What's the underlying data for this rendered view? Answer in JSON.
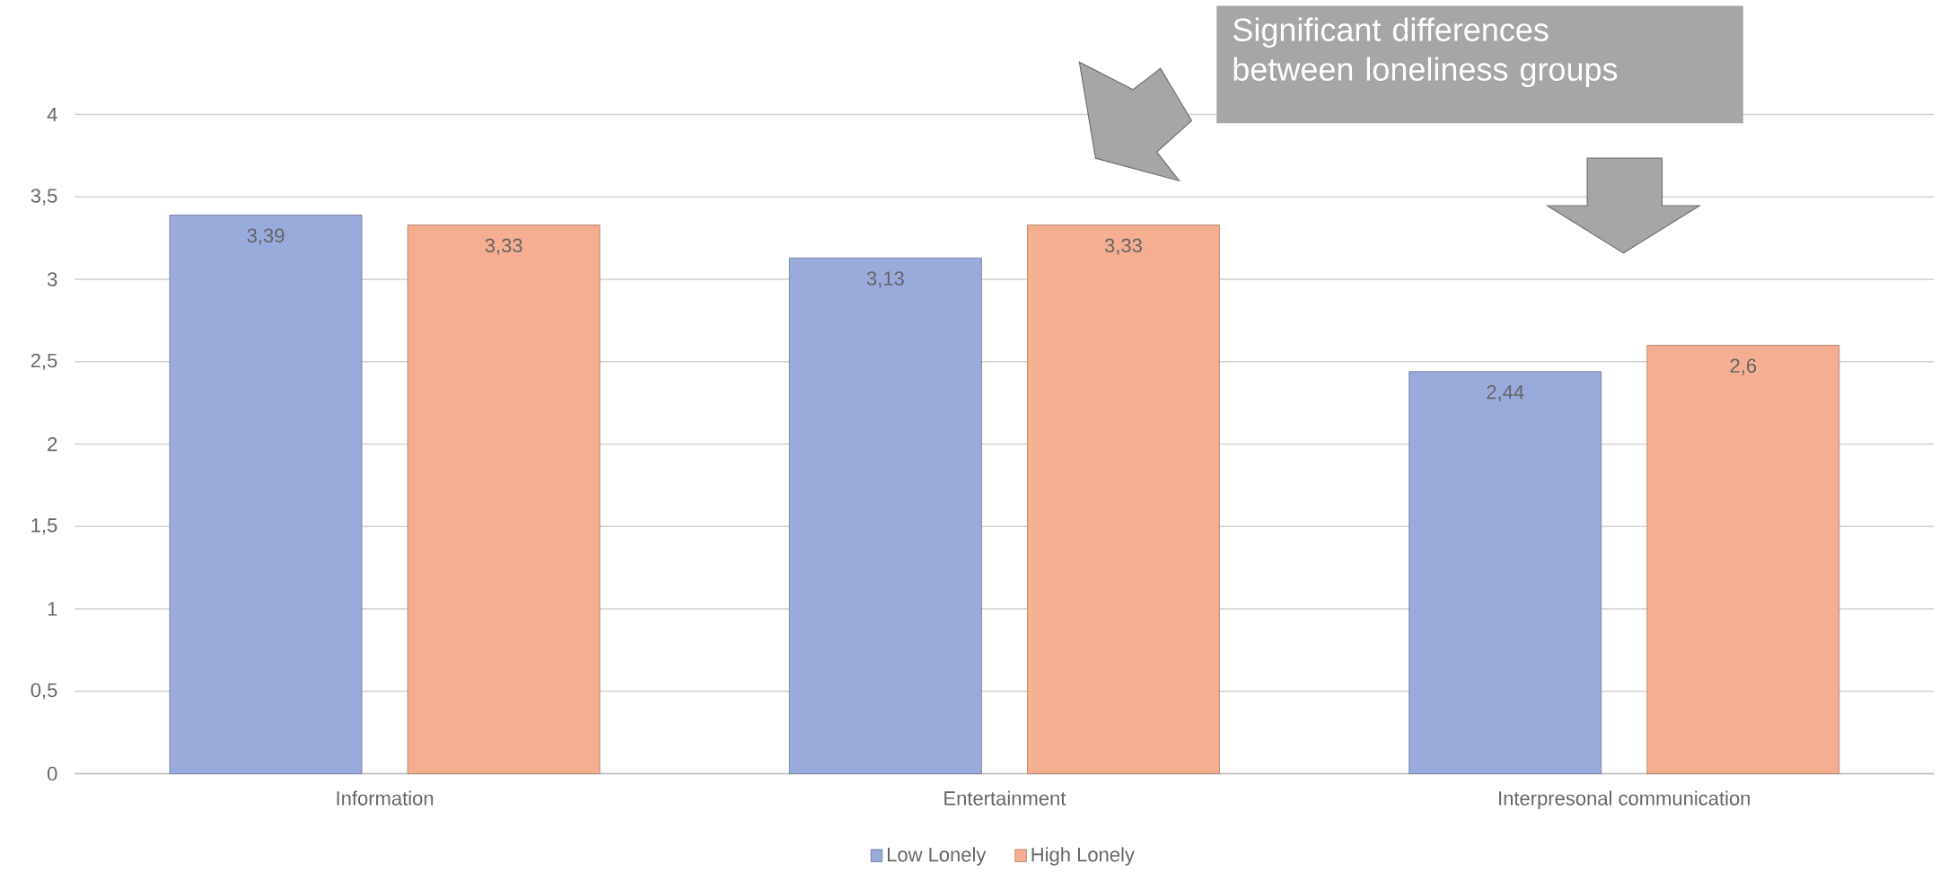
{
  "chart_data": {
    "type": "bar",
    "categories": [
      "Information",
      "Entertainment",
      "Interpresonal communication"
    ],
    "series": [
      {
        "name": "Low Lonely",
        "color": "#9aaadc",
        "values": [
          3.39,
          3.13,
          2.44
        ],
        "value_labels": [
          "3,39",
          "3,13",
          "2,44"
        ]
      },
      {
        "name": "High Lonely",
        "color": "#f5ae8f",
        "values": [
          3.33,
          3.33,
          2.6
        ],
        "value_labels": [
          "3,33",
          "3,33",
          "2,6"
        ]
      }
    ],
    "ylim": [
      0,
      4
    ],
    "yticks": [
      0,
      {
        "value": 0.5,
        "label": "0,5"
      },
      1,
      {
        "value": 1.5,
        "label": "1,5"
      },
      2,
      {
        "value": 2.5,
        "label": "2,5"
      },
      3,
      {
        "value": 3.5,
        "label": "3,5"
      },
      4
    ],
    "grid": "y",
    "legend": "bottom",
    "annotations": [
      "Significant differences between loneliness groups"
    ]
  }
}
